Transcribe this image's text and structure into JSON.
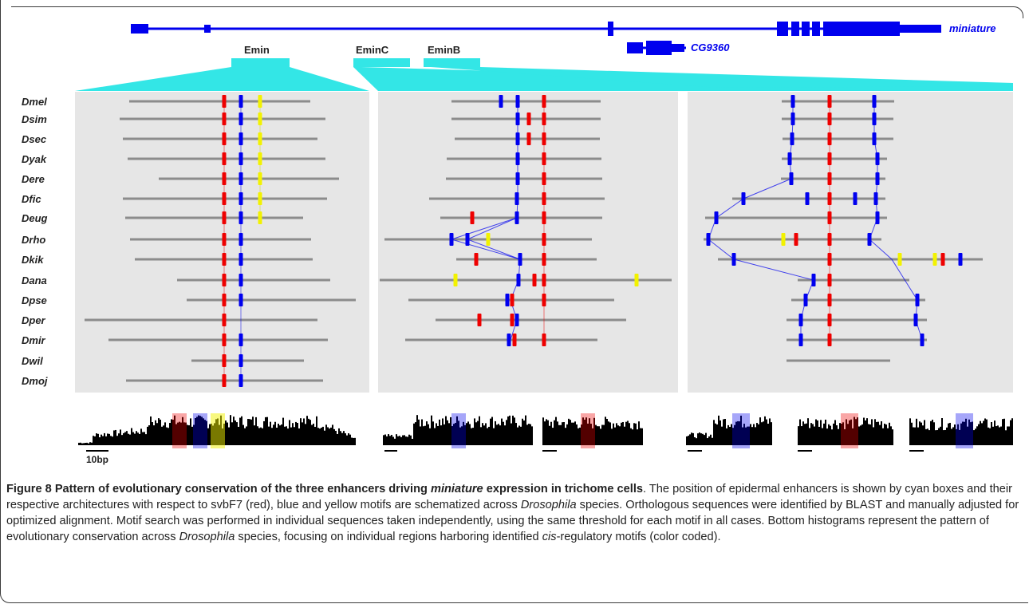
{
  "figure": {
    "gene_labels": {
      "miniature": "miniature",
      "cg9360": "CG9360"
    },
    "enhancers": {
      "emin": "Emin",
      "eminc": "EminC",
      "eminb": "EminB"
    },
    "species": [
      "Dmel",
      "Dsim",
      "Dsec",
      "Dyak",
      "Dere",
      "Dfic",
      "Deug",
      "Drho",
      "Dkik",
      "Dana",
      "Dpse",
      "Dper",
      "Dmir",
      "Dwil",
      "Dmoj"
    ],
    "scale_label": "10bp",
    "colors": {
      "enhancer": "#33e6e6",
      "gene": "#0000ee",
      "svbF7": "#ee0000",
      "blue_motif": "#0000ee",
      "yellow_motif": "#f2f200",
      "panel": "#e6e6e6",
      "line": "#8c8c8c"
    }
  },
  "caption": {
    "title_a": "Figure 8 Pattern of evolutionary conservation of the three enhancers driving ",
    "title_italic": "miniature",
    "title_b": " expression in trichome cells",
    "p1": ". The position of epidermal enhancers is shown by cyan boxes and their respective architectures with respect to svbF7 (red), blue and yellow motifs are schematized across ",
    "p1_italic": "Drosophila",
    "p2": " species. Orthologous sequences were identified by BLAST and manually adjusted for optimized alignment. Motif search was performed in individual sequences taken independently, using the same threshold for each motif in all cases. Bottom histograms represent the pattern of evolutionary conservation across ",
    "p2_italic": "Drosophila",
    "p3": " species, focusing on individual regions harboring identified ",
    "p3_italic": "cis",
    "p4": "-regulatory motifs (color coded)."
  }
}
